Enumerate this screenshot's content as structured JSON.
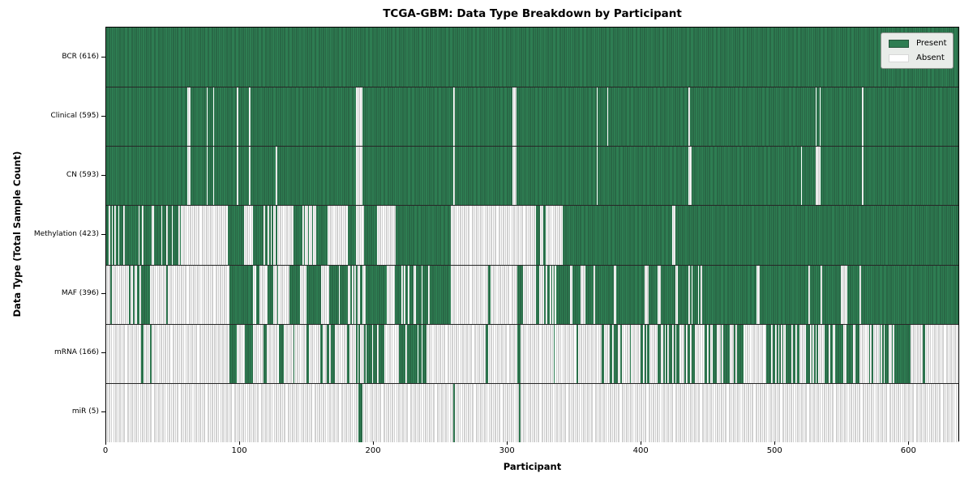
{
  "legend": {
    "present_label": "Present",
    "absent_label": "Absent"
  },
  "colors": {
    "present": "#2e7d52",
    "present_edge": "#24543a",
    "absent": "#ffffff",
    "absent_edge": "#a3a3a3",
    "legend_bg": "#e9ece9",
    "frame": "#000000"
  },
  "chart_data": {
    "type": "heatmap",
    "title": "TCGA-GBM: Data Type Breakdown by Participant",
    "xlabel": "Participant",
    "ylabel": "Data Type (Total Sample Count)",
    "legend": [
      "Present",
      "Absent"
    ],
    "legend_position": "upper right",
    "grid": false,
    "x_range": [
      0,
      638
    ],
    "x_ticks": [
      0,
      100,
      200,
      300,
      400,
      500,
      600
    ],
    "cell_states": "segments are [start_participant, end_participant, value] where 1=present, 0=absent, fraction=mixed presence density",
    "rows": [
      {
        "name": "BCR",
        "label": "BCR (616)",
        "total": 616,
        "segments": [
          [
            0,
            638,
            1
          ]
        ]
      },
      {
        "name": "Clinical",
        "label": "Clinical (595)",
        "total": 595,
        "segments": [
          [
            0,
            61,
            1
          ],
          [
            61,
            63,
            0
          ],
          [
            63,
            75,
            1
          ],
          [
            75,
            76,
            0
          ],
          [
            76,
            80,
            1
          ],
          [
            80,
            81,
            0
          ],
          [
            81,
            98,
            1
          ],
          [
            98,
            99,
            0
          ],
          [
            99,
            107,
            1
          ],
          [
            107,
            108,
            0
          ],
          [
            108,
            187,
            1
          ],
          [
            187,
            192,
            0
          ],
          [
            192,
            260,
            1
          ],
          [
            260,
            261,
            0
          ],
          [
            261,
            304,
            1
          ],
          [
            304,
            307,
            0
          ],
          [
            307,
            367,
            1
          ],
          [
            367,
            368,
            0
          ],
          [
            368,
            375,
            1
          ],
          [
            375,
            376,
            0
          ],
          [
            376,
            436,
            1
          ],
          [
            436,
            437,
            0
          ],
          [
            437,
            531,
            1
          ],
          [
            531,
            532,
            0
          ],
          [
            532,
            534,
            1
          ],
          [
            534,
            535,
            0
          ],
          [
            535,
            566,
            1
          ],
          [
            566,
            567,
            0
          ],
          [
            567,
            638,
            1
          ]
        ]
      },
      {
        "name": "CN",
        "label": "CN (593)",
        "total": 593,
        "segments": [
          [
            0,
            61,
            1
          ],
          [
            61,
            63,
            0
          ],
          [
            63,
            75,
            1
          ],
          [
            75,
            76,
            0
          ],
          [
            76,
            80,
            1
          ],
          [
            80,
            81,
            0
          ],
          [
            81,
            98,
            1
          ],
          [
            98,
            99,
            0
          ],
          [
            99,
            107,
            1
          ],
          [
            107,
            108,
            0
          ],
          [
            108,
            127,
            1
          ],
          [
            127,
            128,
            0
          ],
          [
            128,
            187,
            1
          ],
          [
            187,
            192,
            0
          ],
          [
            192,
            260,
            1
          ],
          [
            260,
            261,
            0
          ],
          [
            261,
            304,
            1
          ],
          [
            304,
            307,
            0
          ],
          [
            307,
            367,
            1
          ],
          [
            367,
            368,
            0
          ],
          [
            368,
            436,
            1
          ],
          [
            436,
            438,
            0
          ],
          [
            438,
            520,
            1
          ],
          [
            520,
            521,
            0
          ],
          [
            521,
            531,
            1
          ],
          [
            531,
            535,
            0
          ],
          [
            535,
            566,
            1
          ],
          [
            566,
            567,
            0
          ],
          [
            567,
            638,
            1
          ]
        ]
      },
      {
        "name": "Methylation",
        "label": "Methylation (423)",
        "total": 423,
        "segments": [
          [
            0,
            56,
            0.72
          ],
          [
            56,
            91,
            0
          ],
          [
            91,
            103,
            1
          ],
          [
            103,
            110,
            0
          ],
          [
            110,
            115,
            1
          ],
          [
            115,
            128,
            0.5
          ],
          [
            128,
            140,
            0
          ],
          [
            140,
            145,
            1
          ],
          [
            145,
            159,
            0.35
          ],
          [
            159,
            166,
            1
          ],
          [
            166,
            181,
            0
          ],
          [
            181,
            187,
            1
          ],
          [
            187,
            193,
            0
          ],
          [
            193,
            203,
            1
          ],
          [
            203,
            217,
            0
          ],
          [
            217,
            258,
            1
          ],
          [
            258,
            322,
            0
          ],
          [
            322,
            325,
            1
          ],
          [
            325,
            327,
            0
          ],
          [
            327,
            329,
            1
          ],
          [
            329,
            342,
            0
          ],
          [
            342,
            424,
            1
          ],
          [
            424,
            426,
            0
          ],
          [
            426,
            638,
            1
          ]
        ]
      },
      {
        "name": "MAF",
        "label": "MAF (396)",
        "total": 396,
        "segments": [
          [
            0,
            26,
            0.15
          ],
          [
            26,
            33,
            1
          ],
          [
            33,
            92,
            0.03
          ],
          [
            92,
            110,
            1
          ],
          [
            110,
            129,
            0.45
          ],
          [
            129,
            137,
            0
          ],
          [
            137,
            145,
            1
          ],
          [
            145,
            150,
            0
          ],
          [
            150,
            161,
            1
          ],
          [
            161,
            167,
            0
          ],
          [
            167,
            181,
            0.85
          ],
          [
            181,
            194,
            0.3
          ],
          [
            194,
            210,
            1
          ],
          [
            210,
            216,
            0
          ],
          [
            216,
            258,
            0.92
          ],
          [
            258,
            286,
            0
          ],
          [
            286,
            288,
            1
          ],
          [
            288,
            308,
            0
          ],
          [
            308,
            312,
            1
          ],
          [
            312,
            322,
            0
          ],
          [
            322,
            340,
            0.45
          ],
          [
            340,
            347,
            1
          ],
          [
            347,
            349,
            0
          ],
          [
            349,
            355,
            1
          ],
          [
            355,
            359,
            0
          ],
          [
            359,
            365,
            1
          ],
          [
            365,
            366,
            0
          ],
          [
            366,
            380,
            1
          ],
          [
            380,
            382,
            0
          ],
          [
            382,
            403,
            1
          ],
          [
            403,
            406,
            0
          ],
          [
            406,
            413,
            1
          ],
          [
            413,
            415,
            0
          ],
          [
            415,
            426,
            1
          ],
          [
            426,
            428,
            0
          ],
          [
            428,
            436,
            1
          ],
          [
            436,
            446,
            0.4
          ],
          [
            446,
            487,
            1
          ],
          [
            487,
            489,
            0
          ],
          [
            489,
            526,
            1
          ],
          [
            526,
            527,
            0
          ],
          [
            527,
            535,
            1
          ],
          [
            535,
            536,
            0
          ],
          [
            536,
            550,
            1
          ],
          [
            550,
            555,
            0
          ],
          [
            555,
            564,
            1
          ],
          [
            564,
            565,
            0
          ],
          [
            565,
            638,
            1
          ]
        ]
      },
      {
        "name": "mRNA",
        "label": "mRNA (166)",
        "total": 166,
        "segments": [
          [
            0,
            26,
            0
          ],
          [
            26,
            28,
            1
          ],
          [
            28,
            33,
            0
          ],
          [
            33,
            34,
            1
          ],
          [
            34,
            92,
            0
          ],
          [
            92,
            98,
            1
          ],
          [
            98,
            104,
            0
          ],
          [
            104,
            110,
            1
          ],
          [
            110,
            118,
            0
          ],
          [
            118,
            120,
            1
          ],
          [
            120,
            129,
            0
          ],
          [
            129,
            133,
            1
          ],
          [
            133,
            140,
            0
          ],
          [
            140,
            141,
            1
          ],
          [
            141,
            150,
            0
          ],
          [
            150,
            152,
            1
          ],
          [
            152,
            160,
            0
          ],
          [
            160,
            171,
            0.5
          ],
          [
            171,
            180,
            0
          ],
          [
            180,
            182,
            1
          ],
          [
            182,
            187,
            0
          ],
          [
            187,
            210,
            0.65
          ],
          [
            210,
            217,
            0
          ],
          [
            217,
            240,
            0.7
          ],
          [
            240,
            284,
            0
          ],
          [
            284,
            286,
            1
          ],
          [
            286,
            308,
            0
          ],
          [
            308,
            310,
            1
          ],
          [
            310,
            335,
            0
          ],
          [
            335,
            336,
            1
          ],
          [
            336,
            352,
            0
          ],
          [
            352,
            353,
            1
          ],
          [
            353,
            368,
            0
          ],
          [
            368,
            388,
            0.6
          ],
          [
            388,
            408,
            0.25
          ],
          [
            408,
            430,
            0.5
          ],
          [
            430,
            462,
            0.3
          ],
          [
            462,
            478,
            0.7
          ],
          [
            478,
            494,
            0
          ],
          [
            494,
            518,
            0.7
          ],
          [
            518,
            538,
            0.35
          ],
          [
            538,
            558,
            0.65
          ],
          [
            558,
            582,
            0.25
          ],
          [
            582,
            602,
            0.6
          ],
          [
            602,
            611,
            0
          ],
          [
            611,
            613,
            1
          ],
          [
            613,
            638,
            0
          ]
        ]
      },
      {
        "name": "miR",
        "label": "miR (5)",
        "total": 5,
        "segments": [
          [
            0,
            189,
            0
          ],
          [
            189,
            192,
            1
          ],
          [
            192,
            260,
            0
          ],
          [
            260,
            261,
            1
          ],
          [
            261,
            309,
            0
          ],
          [
            309,
            310,
            1
          ],
          [
            310,
            638,
            0
          ]
        ]
      }
    ]
  }
}
